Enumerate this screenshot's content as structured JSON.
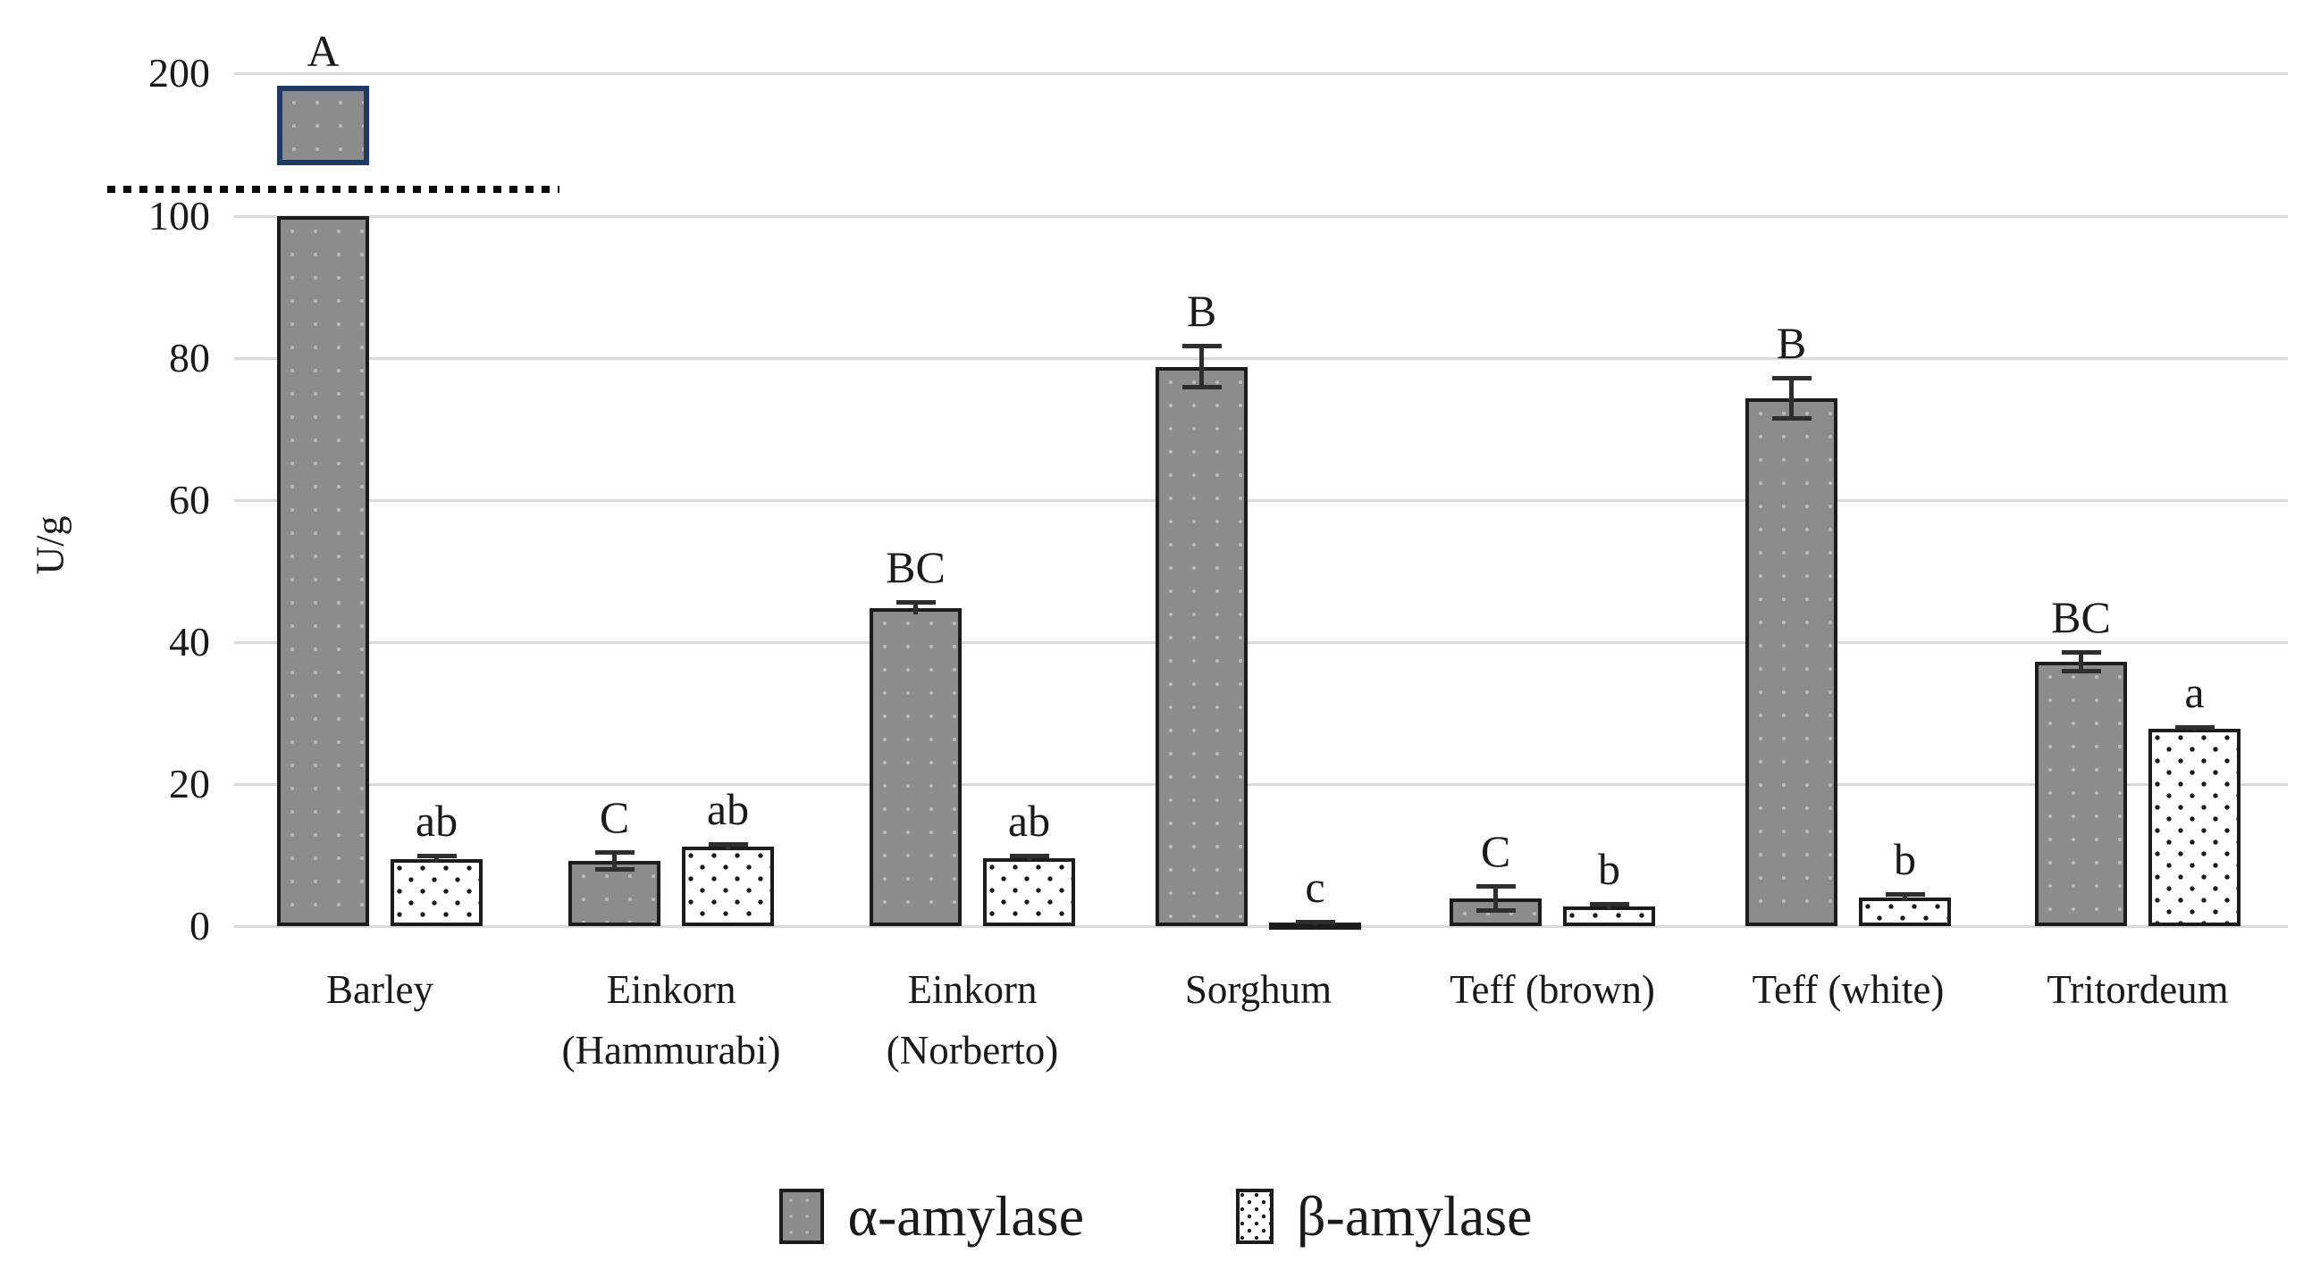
{
  "figure": {
    "ylabel": "U/g"
  },
  "chart_data": {
    "type": "bar",
    "title": "",
    "xlabel": "",
    "ylabel": "U/g",
    "grid": true,
    "legend_position": "bottom",
    "yticks": [
      0,
      20,
      40,
      60,
      80,
      100,
      200
    ],
    "axis_break": {
      "between": [
        100,
        200
      ],
      "note": "dotted line marks y-axis break; Barley alpha-amylase bar exceeds 100 and is continued as a boxed segment below the 200 gridline",
      "box_value_range": [
        125,
        190
      ]
    },
    "categories": [
      "Barley",
      "Einkorn\n(Hammurabi)",
      "Einkorn\n(Norberto)",
      "Sorghum",
      "Teff (brown)",
      "Teff (white)",
      "Tritordeum"
    ],
    "series": [
      {
        "name": "α-amylase",
        "style": "alpha",
        "values": [
          185,
          9.2,
          44.8,
          78.8,
          3.9,
          74.3,
          37.2
        ],
        "errors": [
          0,
          1.3,
          0.9,
          2.9,
          1.7,
          2.9,
          1.4
        ],
        "letters": [
          "A",
          "C",
          "BC",
          "B",
          "C",
          "B",
          "BC"
        ],
        "break_bar_index": 0
      },
      {
        "name": "β-amylase",
        "style": "beta",
        "values": [
          9.4,
          11.2,
          9.6,
          0.5,
          2.8,
          4.0,
          27.8
        ],
        "errors": [
          0.5,
          0.4,
          0.4,
          0.15,
          0.4,
          0.5,
          0.3
        ],
        "letters": [
          "ab",
          "ab",
          "ab",
          "c",
          "b",
          "b",
          "a"
        ]
      }
    ],
    "colors": {
      "alpha_fill": "#8c8c8c",
      "beta_fill": "#ffffff",
      "bar_border": "#1c1c1c",
      "break_box_border": "#1f3864",
      "gridline": "#d9d9d9",
      "text": "#1a1a1a"
    }
  }
}
